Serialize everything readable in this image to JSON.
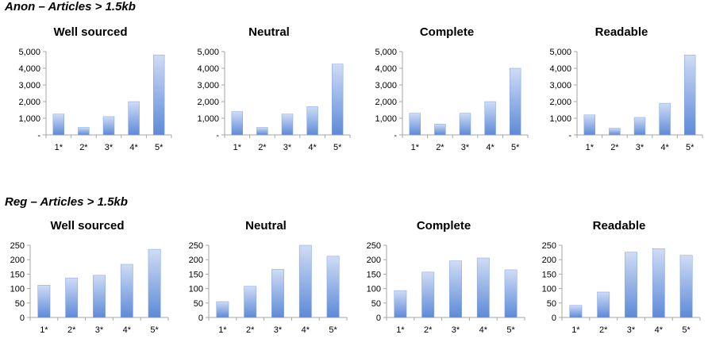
{
  "sections": [
    {
      "title": "Anon – Articles > 1.5kb"
    },
    {
      "title": "Reg – Articles > 1.5kb"
    }
  ],
  "colors": {
    "bar_top": "#cfdcf5",
    "bar_bottom": "#5d8ad8",
    "axis": "#a6a6a6"
  },
  "chart_data": [
    {
      "type": "bar",
      "title": "Well sourced",
      "categories": [
        "1*",
        "2*",
        "3*",
        "4*",
        "5*"
      ],
      "values": [
        1250,
        450,
        1100,
        2000,
        4800
      ],
      "ylim": [
        0,
        5000
      ],
      "yticks": [
        0,
        1000,
        2000,
        3000,
        4000,
        5000
      ],
      "ytick_labels": [
        "-",
        "1,000",
        "2,000",
        "3,000",
        "4,000",
        "5,000"
      ]
    },
    {
      "type": "bar",
      "title": "Neutral",
      "categories": [
        "1*",
        "2*",
        "3*",
        "4*",
        "5*"
      ],
      "values": [
        1400,
        450,
        1250,
        1700,
        4250
      ],
      "ylim": [
        0,
        5000
      ],
      "yticks": [
        0,
        1000,
        2000,
        3000,
        4000,
        5000
      ],
      "ytick_labels": [
        "-",
        "1,000",
        "2,000",
        "3,000",
        "4,000",
        "5,000"
      ]
    },
    {
      "type": "bar",
      "title": "Complete",
      "categories": [
        "1*",
        "2*",
        "3*",
        "4*",
        "5*"
      ],
      "values": [
        1300,
        650,
        1300,
        2000,
        4000
      ],
      "ylim": [
        0,
        5000
      ],
      "yticks": [
        0,
        1000,
        2000,
        3000,
        4000,
        5000
      ],
      "ytick_labels": [
        "-",
        "1,000",
        "2,000",
        "3,000",
        "4,000",
        "5,000"
      ]
    },
    {
      "type": "bar",
      "title": "Readable",
      "categories": [
        "1*",
        "2*",
        "3*",
        "4*",
        "5*"
      ],
      "values": [
        1200,
        400,
        1050,
        1900,
        4800
      ],
      "ylim": [
        0,
        5000
      ],
      "yticks": [
        0,
        1000,
        2000,
        3000,
        4000,
        5000
      ],
      "ytick_labels": [
        "-",
        "1,000",
        "2,000",
        "3,000",
        "4,000",
        "5,000"
      ]
    },
    {
      "type": "bar",
      "title": "Well sourced",
      "categories": [
        "1*",
        "2*",
        "3*",
        "4*",
        "5*"
      ],
      "values": [
        112,
        137,
        146,
        184,
        236
      ],
      "ylim": [
        0,
        250
      ],
      "yticks": [
        0,
        50,
        100,
        150,
        200,
        250
      ],
      "ytick_labels": [
        "0",
        "50",
        "100",
        "150",
        "200",
        "250"
      ]
    },
    {
      "type": "bar",
      "title": "Neutral",
      "categories": [
        "1*",
        "2*",
        "3*",
        "4*",
        "5*"
      ],
      "values": [
        55,
        108,
        167,
        250,
        212
      ],
      "ylim": [
        0,
        250
      ],
      "yticks": [
        0,
        50,
        100,
        150,
        200,
        250
      ],
      "ytick_labels": [
        "0",
        "50",
        "100",
        "150",
        "200",
        "250"
      ]
    },
    {
      "type": "bar",
      "title": "Complete",
      "categories": [
        "1*",
        "2*",
        "3*",
        "4*",
        "5*"
      ],
      "values": [
        93,
        157,
        196,
        206,
        165
      ],
      "ylim": [
        0,
        250
      ],
      "yticks": [
        0,
        50,
        100,
        150,
        200,
        250
      ],
      "ytick_labels": [
        "0",
        "50",
        "100",
        "150",
        "200",
        "250"
      ]
    },
    {
      "type": "bar",
      "title": "Readable",
      "categories": [
        "1*",
        "2*",
        "3*",
        "4*",
        "5*"
      ],
      "values": [
        42,
        88,
        226,
        238,
        215
      ],
      "ylim": [
        0,
        250
      ],
      "yticks": [
        0,
        50,
        100,
        150,
        200,
        250
      ],
      "ytick_labels": [
        "0",
        "50",
        "100",
        "150",
        "200",
        "250"
      ]
    }
  ]
}
